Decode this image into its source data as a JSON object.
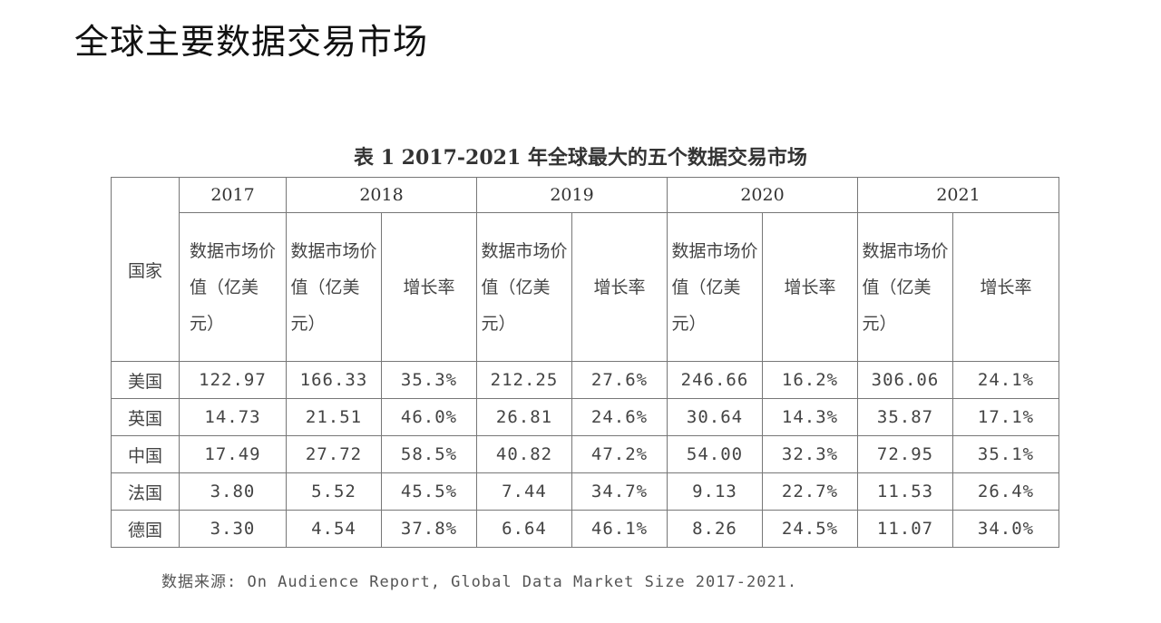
{
  "page_title": "全球主要数据交易市场",
  "table": {
    "caption": "表 1 2017-2021 年全球最大的五个数据交易市场",
    "country_header": "国家",
    "years": [
      "2017",
      "2018",
      "2019",
      "2020",
      "2021"
    ],
    "value_header": "数据市场价值（亿美元）",
    "growth_header": "增长率",
    "rows": [
      {
        "country": "美国",
        "v2017": "122.97",
        "v2018": "166.33",
        "g2018": "35.3%",
        "v2019": "212.25",
        "g2019": "27.6%",
        "v2020": "246.66",
        "g2020": "16.2%",
        "v2021": "306.06",
        "g2021": "24.1%"
      },
      {
        "country": "英国",
        "v2017": "14.73",
        "v2018": "21.51",
        "g2018": "46.0%",
        "v2019": "26.81",
        "g2019": "24.6%",
        "v2020": "30.64",
        "g2020": "14.3%",
        "v2021": "35.87",
        "g2021": "17.1%"
      },
      {
        "country": "中国",
        "v2017": "17.49",
        "v2018": "27.72",
        "g2018": "58.5%",
        "v2019": "40.82",
        "g2019": "47.2%",
        "v2020": "54.00",
        "g2020": "32.3%",
        "v2021": "72.95",
        "g2021": "35.1%"
      },
      {
        "country": "法国",
        "v2017": "3.80",
        "v2018": "5.52",
        "g2018": "45.5%",
        "v2019": "7.44",
        "g2019": "34.7%",
        "v2020": "9.13",
        "g2020": "22.7%",
        "v2021": "11.53",
        "g2021": "26.4%"
      },
      {
        "country": "德国",
        "v2017": "3.30",
        "v2018": "4.54",
        "g2018": "37.8%",
        "v2019": "6.64",
        "g2019": "46.1%",
        "v2020": "8.26",
        "g2020": "24.5%",
        "v2021": "11.07",
        "g2021": "34.0%"
      }
    ]
  },
  "source": "数据来源: On Audience Report, Global Data Market Size 2017-2021."
}
